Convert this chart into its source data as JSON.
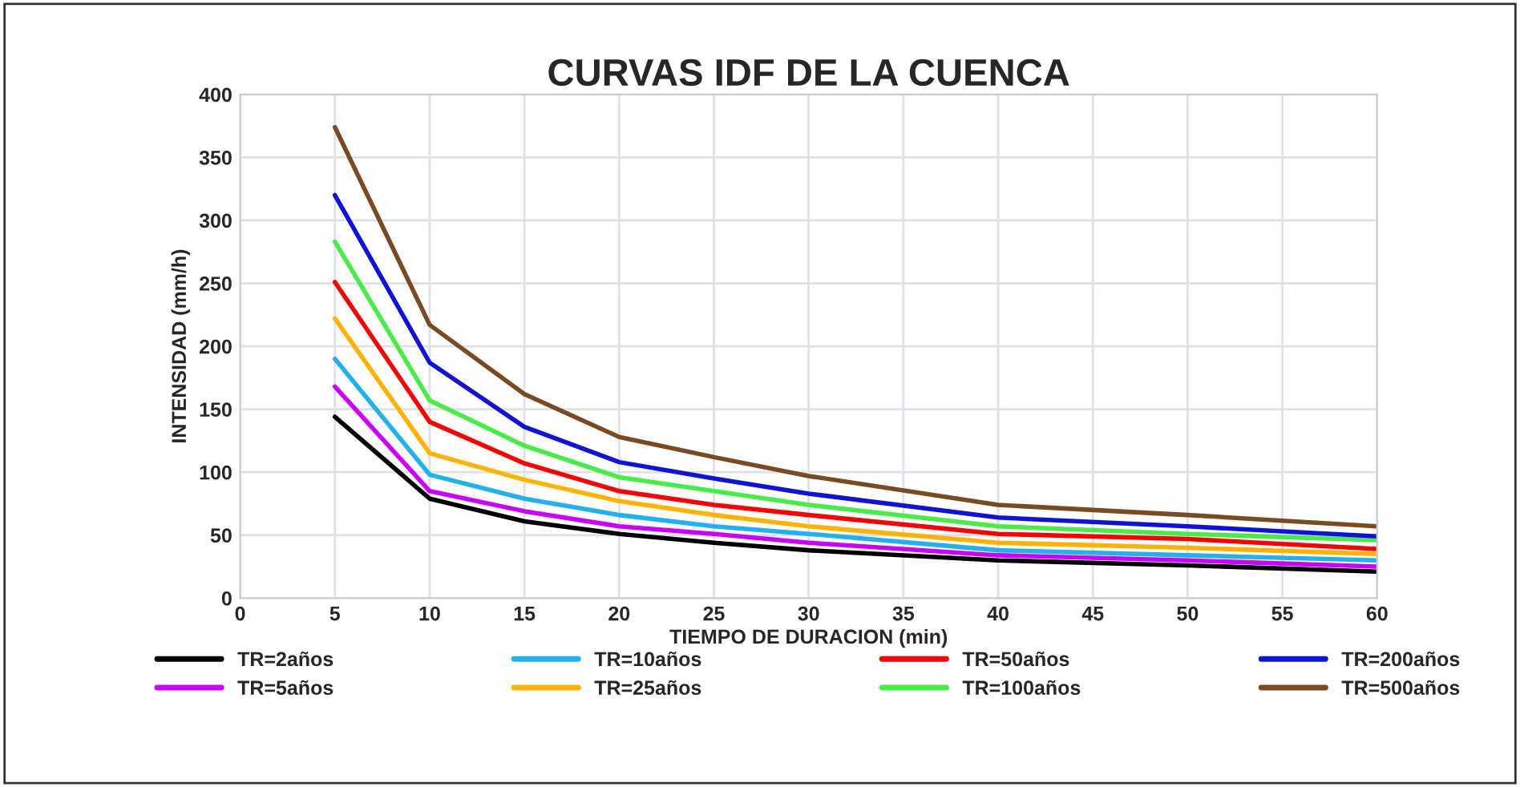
{
  "chart_data": {
    "type": "line",
    "title": "CURVAS IDF DE LA CUENCA",
    "xlabel": "TIEMPO DE DURACION (min)",
    "ylabel": "INTENSIDAD (mm/h)",
    "x": [
      5,
      10,
      15,
      20,
      25,
      30,
      40,
      50,
      60
    ],
    "series": [
      {
        "name": "TR=2años",
        "color": "#000000",
        "values": [
          144,
          79,
          61,
          51,
          44,
          38,
          30,
          26,
          21
        ]
      },
      {
        "name": "TR=5años",
        "color": "#cc00ff",
        "values": [
          168,
          85,
          69,
          57,
          51,
          44,
          34,
          30,
          25
        ]
      },
      {
        "name": "TR=10años",
        "color": "#1fb1f0",
        "values": [
          190,
          98,
          79,
          66,
          57,
          51,
          38,
          34,
          30
        ]
      },
      {
        "name": "TR=25años",
        "color": "#ffb300",
        "values": [
          222,
          115,
          94,
          77,
          66,
          57,
          44,
          40,
          35
        ]
      },
      {
        "name": "TR=50años",
        "color": "#ff0000",
        "values": [
          251,
          140,
          107,
          85,
          74,
          66,
          51,
          47,
          39
        ]
      },
      {
        "name": "TR=100años",
        "color": "#44ee44",
        "values": [
          283,
          157,
          121,
          96,
          85,
          74,
          57,
          51,
          46
        ]
      },
      {
        "name": "TR=200años",
        "color": "#1010e0",
        "values": [
          320,
          187,
          136,
          108,
          95,
          83,
          64,
          57,
          49
        ]
      },
      {
        "name": "TR=500años",
        "color": "#7a4a22",
        "values": [
          374,
          217,
          162,
          128,
          112,
          97,
          74,
          66,
          57
        ]
      }
    ],
    "xlim": [
      0,
      60
    ],
    "xticks": [
      0,
      5,
      10,
      15,
      20,
      25,
      30,
      35,
      40,
      45,
      50,
      55,
      60
    ],
    "ylim": [
      0,
      400
    ],
    "yticks": [
      0,
      50,
      100,
      150,
      200,
      250,
      300,
      350,
      400
    ],
    "grid": true,
    "legend": "bottom",
    "marker": "none",
    "line_style": "solid"
  }
}
